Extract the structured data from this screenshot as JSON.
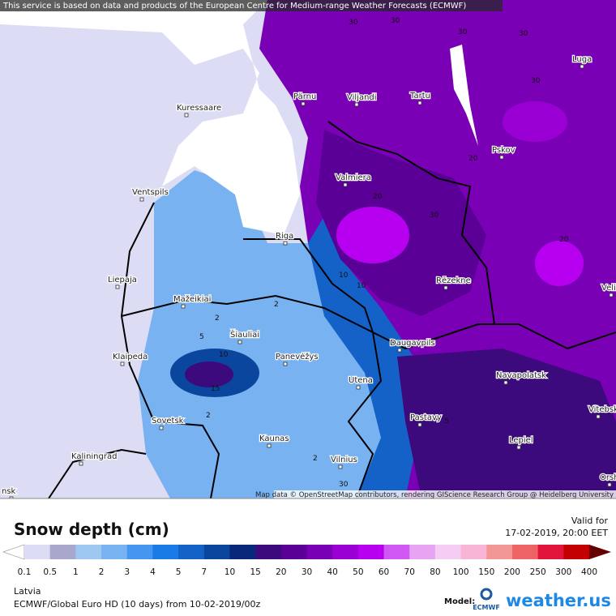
{
  "attribution_top": "This service is based on data and products of the European Centre for Medium-range Weather Forecasts (ECMWF)",
  "attribution_map": "Map data © OpenStreetMap contributors, rendering GIScience Research Group @ Heidelberg University",
  "cities": [
    "Kuressaare",
    "Pärnu",
    "Viljandi",
    "Tartu",
    "Luga",
    "Pskov",
    "Valmiera",
    "Ventspils",
    "Riga",
    "Liepaja",
    "Mažeikiai",
    "Rēzekne",
    "Šiauliai",
    "Klaipeda",
    "Panevėžys",
    "Daugavpils",
    "Utena",
    "Navapolatsk",
    "Vitebsk",
    "Sovetsk",
    "Pastavy",
    "Kaunas",
    "Lepiel",
    "Kaliningrad",
    "Vilnius",
    "Orsha",
    "Velikie",
    "nsk"
  ],
  "contour_labels": [
    30,
    30,
    30,
    30,
    30,
    20,
    30,
    10,
    10,
    20,
    2,
    2,
    5,
    10,
    15,
    2,
    2,
    5,
    30,
    20
  ],
  "legend": {
    "title": "Snow depth (cm)",
    "valid_label": "Valid for",
    "valid_time": "17-02-2019, 20:00 EET",
    "labels": [
      0.1,
      0.5,
      1,
      2,
      3,
      4,
      5,
      7,
      10,
      15,
      20,
      30,
      40,
      50,
      60,
      70,
      80,
      100,
      150,
      200,
      250,
      300,
      400
    ],
    "colors": [
      "#dcdcf4",
      "#a8a8cc",
      "#9ec8f2",
      "#78b2f0",
      "#4496f0",
      "#1a7ae6",
      "#1462c8",
      "#0a469e",
      "#08287a",
      "#3c0a7c",
      "#5a0096",
      "#7a00b6",
      "#9a00d4",
      "#b800f0",
      "#d058f2",
      "#e8a4f2",
      "#f4ccf4",
      "#f8b4d4",
      "#f29696",
      "#ee6464",
      "#e2143c",
      "#c40000",
      "#9c0000"
    ],
    "low_color": "#ffffff",
    "high_color": "#640000"
  },
  "footer": {
    "region": "Latvia",
    "model_run": "ECMWF/Global Euro HD (10 days) from 10-02-2019/00z",
    "model_label": "Model:",
    "model_name": "ECMWF",
    "brand": "weather.us"
  }
}
